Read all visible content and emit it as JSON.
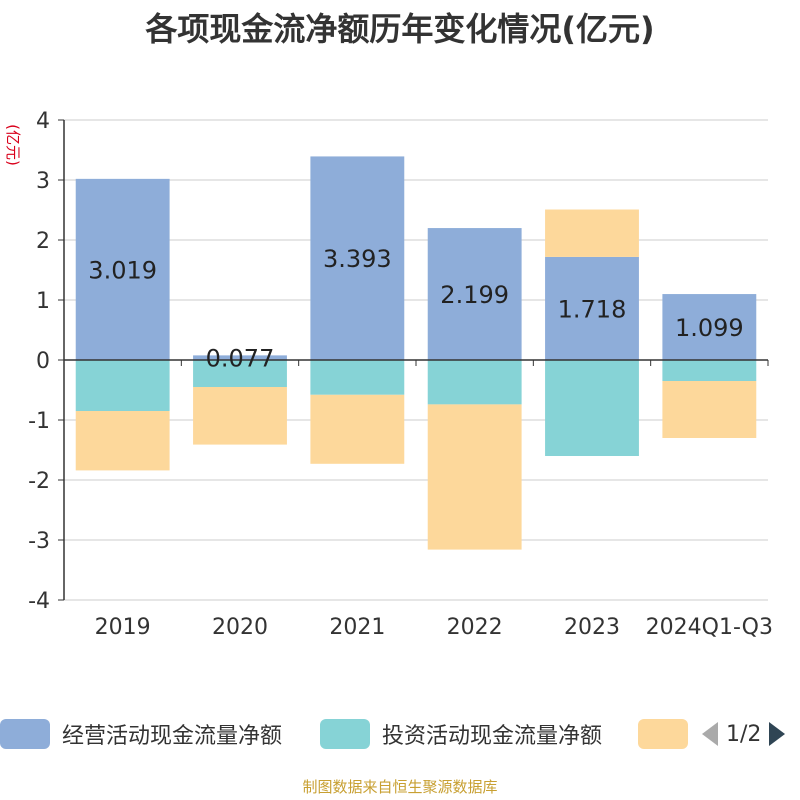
{
  "title": "各项现金流净额历年变化情况(亿元)",
  "source_text": "制图数据来自恒生聚源数据库",
  "legend": {
    "items": [
      {
        "label": "经营活动现金流量净额",
        "color": "#8eadd9"
      },
      {
        "label": "投资活动现金流量净额",
        "color": "#86d3d6"
      },
      {
        "label": "",
        "color": "#fdd89b"
      }
    ],
    "page_text": "1/2"
  },
  "chart_data": {
    "type": "bar",
    "stacked": true,
    "title": "各项现金流净额历年变化情况(亿元)",
    "ylabel": "(亿元)",
    "xlabel": "",
    "ylim": [
      -4,
      4
    ],
    "yticks": [
      4,
      3,
      2,
      1,
      0,
      -1,
      -2,
      -3,
      -4
    ],
    "grid": true,
    "legend_position": "bottom",
    "categories": [
      "2019",
      "2020",
      "2021",
      "2022",
      "2023",
      "2024Q1-Q3"
    ],
    "series": [
      {
        "name": "经营活动现金流量净额",
        "color": "#8eadd9",
        "values": [
          3.019,
          0.077,
          3.393,
          2.199,
          1.718,
          1.099
        ],
        "labels": [
          "3.019",
          "0.077",
          "3.393",
          "2.199",
          "1.718",
          "1.099"
        ]
      },
      {
        "name": "投资活动现金流量净额",
        "color": "#86d3d6",
        "values": [
          -0.85,
          -0.45,
          -0.58,
          -0.74,
          -1.6,
          -0.35
        ]
      },
      {
        "color": "#fdd89b",
        "values": [
          -0.99,
          -0.96,
          -1.15,
          -2.42,
          0.79,
          -0.95
        ]
      }
    ]
  }
}
